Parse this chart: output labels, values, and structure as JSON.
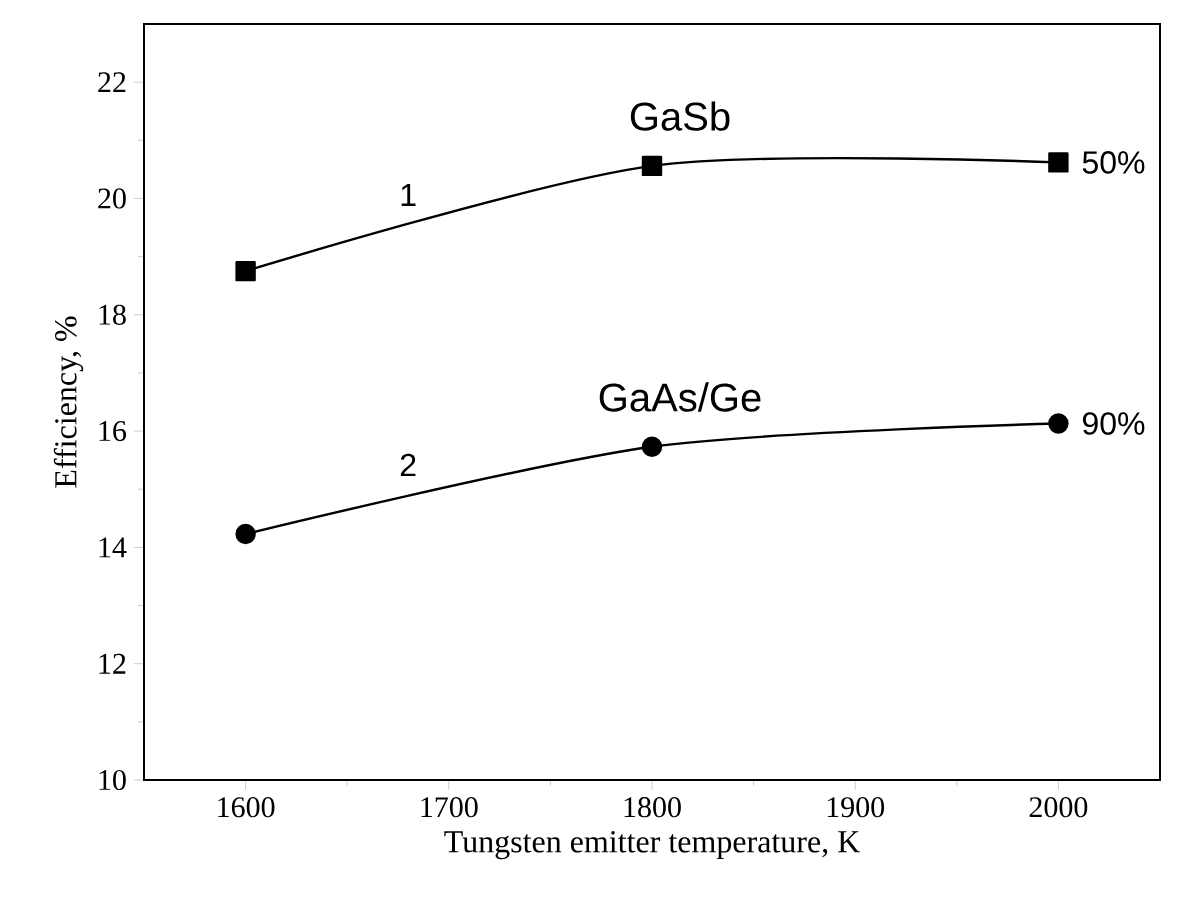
{
  "chart_data": {
    "type": "line",
    "xlabel": "Tungsten emitter temperature, K",
    "ylabel": "Efficiency, %",
    "x": [
      1600,
      1800,
      2000
    ],
    "series": [
      {
        "name": "GaSb",
        "color": "#000000",
        "marker": "square",
        "values": [
          18.75,
          20.56,
          20.62
        ]
      },
      {
        "name": "GaAs/Ge",
        "color": "#000000",
        "marker": "circle",
        "values": [
          14.23,
          15.73,
          16.13
        ]
      }
    ],
    "xlim": [
      1550,
      2050
    ],
    "ylim": [
      10,
      23
    ],
    "xticks": [
      1600,
      1700,
      1800,
      1900,
      2000
    ],
    "yticks": [
      10,
      12,
      14,
      16,
      18,
      20,
      22
    ],
    "grid": false,
    "legend": false,
    "line_style": "solid",
    "annotations": [
      "1",
      "2",
      "50%",
      "90%"
    ]
  }
}
